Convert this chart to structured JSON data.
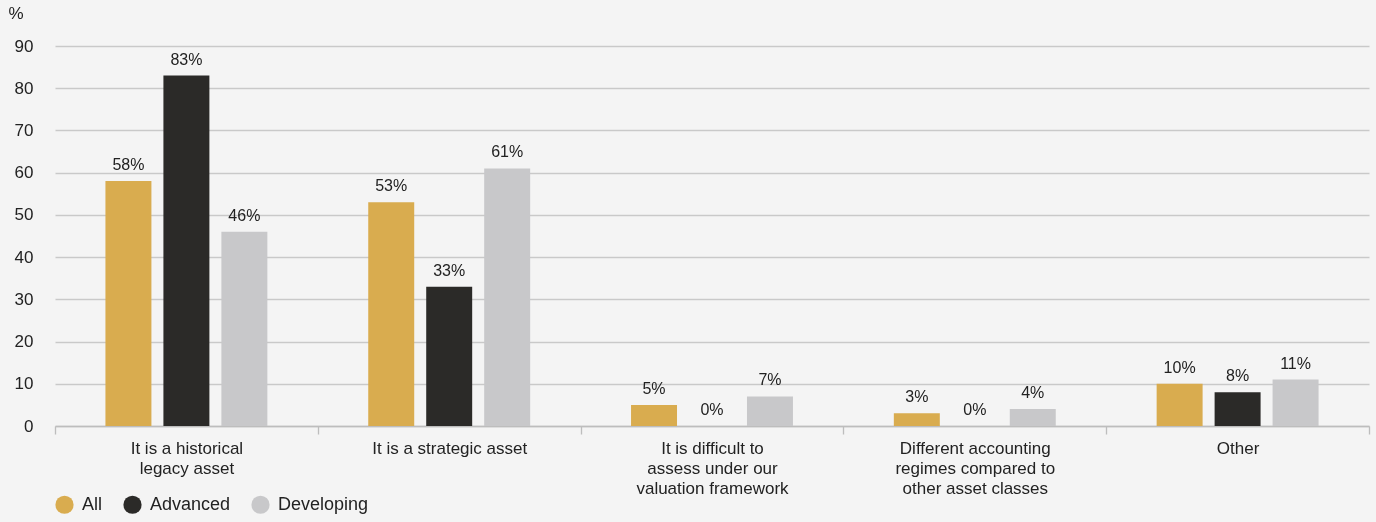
{
  "chart_data": {
    "type": "bar",
    "ylabel": "%",
    "categories": [
      "It is a historical legacy asset",
      "It is a strategic asset",
      "It is difficult to assess under our valuation framework",
      "Different accounting regimes compared to other asset classes",
      "Other"
    ],
    "series": [
      {
        "name": "All",
        "color": "#d9ac4f",
        "values": [
          58,
          53,
          5,
          3,
          10
        ],
        "value_labels": [
          "58%",
          "53%",
          "5%",
          "3%",
          "10%"
        ]
      },
      {
        "name": "Advanced",
        "color": "#2b2a28",
        "values": [
          83,
          33,
          0,
          0,
          8
        ],
        "value_labels": [
          "83%",
          "33%",
          "0%",
          "0%",
          "8%"
        ]
      },
      {
        "name": "Developing",
        "color": "#c8c8ca",
        "values": [
          46,
          61,
          7,
          4,
          11
        ],
        "value_labels": [
          "46%",
          "61%",
          "7%",
          "4%",
          "11%"
        ]
      }
    ],
    "ylim": [
      0,
      90
    ],
    "yticks": [
      0,
      10,
      20,
      30,
      40,
      50,
      60,
      70,
      80,
      90
    ],
    "grid": "y",
    "legend": "bottom left"
  }
}
